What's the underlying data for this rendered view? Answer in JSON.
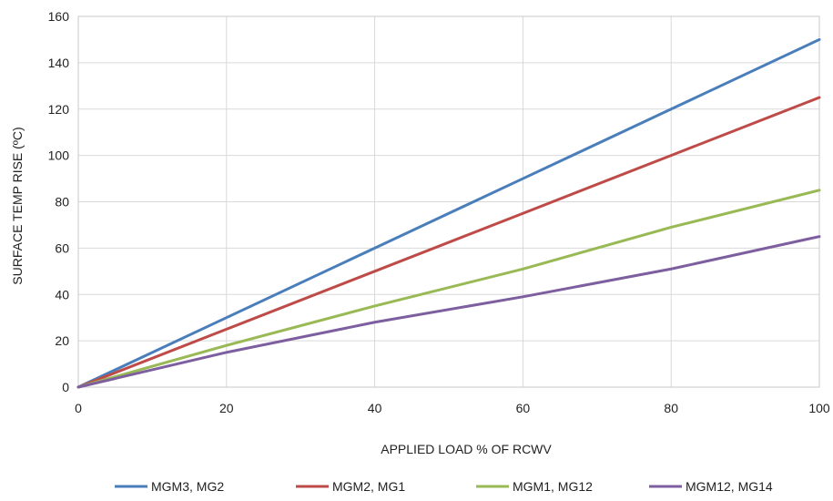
{
  "chart_data": {
    "type": "line",
    "xlabel": "APPLIED LOAD % OF RCWV",
    "ylabel": "SURFACE TEMP RISE (ºC)",
    "xlim": [
      0,
      100
    ],
    "ylim": [
      0,
      160
    ],
    "x_ticks": [
      0,
      20,
      40,
      60,
      80,
      100
    ],
    "y_ticks": [
      0,
      20,
      40,
      60,
      80,
      100,
      120,
      140,
      160
    ],
    "grid": true,
    "legend_position": "bottom",
    "series": [
      {
        "name": "MGM3, MG2",
        "color": "#4a7ebb",
        "x": [
          0,
          20,
          40,
          60,
          80,
          100
        ],
        "y": [
          0,
          30,
          60,
          90,
          120,
          150
        ]
      },
      {
        "name": "MGM2, MG1",
        "color": "#be4b48",
        "x": [
          0,
          20,
          40,
          60,
          80,
          100
        ],
        "y": [
          0,
          25,
          50,
          75,
          100,
          125
        ]
      },
      {
        "name": "MGM1, MG12",
        "color": "#98b954",
        "x": [
          0,
          20,
          40,
          60,
          80,
          100
        ],
        "y": [
          0,
          18,
          35,
          51,
          69,
          85
        ]
      },
      {
        "name": "MGM12, MG14",
        "color": "#7d5fa0",
        "x": [
          0,
          20,
          40,
          60,
          80,
          100
        ],
        "y": [
          0,
          15,
          28,
          39,
          51,
          65
        ]
      }
    ]
  }
}
